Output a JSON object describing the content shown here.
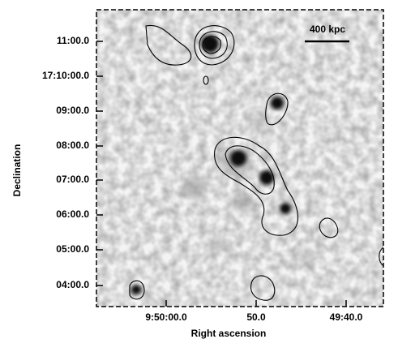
{
  "figure": {
    "x_label": "Right ascension",
    "y_label": "Declination",
    "x_tick_labels": [
      "9:50:00.0",
      "50.0",
      "49:40.0"
    ],
    "y_tick_labels": [
      "11:00.0",
      "17:10:00.0",
      "09:00.0",
      "08:00.0",
      "07:00.0",
      "06:00.0",
      "05:00.0",
      "04:00.0"
    ],
    "scale_bar": "400 kpc"
  }
}
